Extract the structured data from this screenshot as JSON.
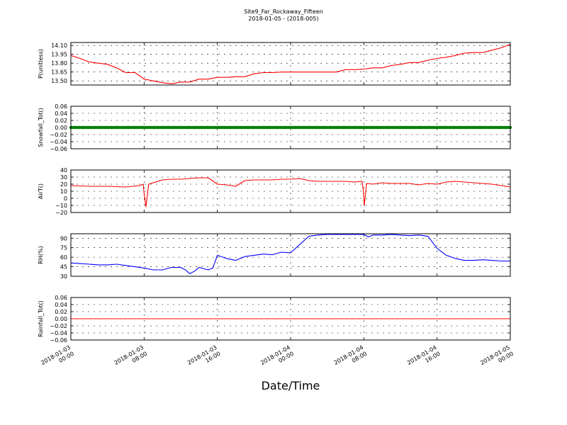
{
  "figure": {
    "title": "Site9_Far_Rockaway_Fifteen",
    "subtitle": "2018-01-05 - (2018-005)",
    "xlabel": "Date/Time",
    "x_ticks": [
      "2018-01-03 00:00",
      "2018-01-03 08:00",
      "2018-01-03 16:00",
      "2018-01-04 00:00",
      "2018-01-04 08:00",
      "2018-01-04 16:00",
      "2018-01-05 00:00"
    ],
    "x_tick_lines": [
      [
        "2018-01-03",
        "00:00"
      ],
      [
        "2018-01-03",
        "08:00"
      ],
      [
        "2018-01-03",
        "16:00"
      ],
      [
        "2018-01-04",
        "00:00"
      ],
      [
        "2018-01-04",
        "08:00"
      ],
      [
        "2018-01-04",
        "16:00"
      ],
      [
        "2018-01-05",
        "00:00"
      ]
    ]
  },
  "chart_data": [
    {
      "type": "line",
      "ylabel": "P(unitless)",
      "color": "#ff0000",
      "ylim": [
        13.43,
        14.15
      ],
      "yticks": [
        13.5,
        13.65,
        13.8,
        13.95,
        14.1
      ],
      "ytick_labels": [
        "13.50",
        "13.65",
        "13.80",
        "13.95",
        "14.10"
      ],
      "grid": true,
      "x_hours": [
        0,
        1,
        2,
        3,
        4,
        5,
        6,
        7,
        8,
        9,
        10,
        11,
        12,
        13,
        14,
        15,
        16,
        17,
        18,
        19,
        20,
        21,
        22,
        23,
        24,
        25,
        26,
        27,
        28,
        29,
        30,
        31,
        32,
        33,
        34,
        35,
        36,
        37,
        38,
        39,
        40,
        41,
        42,
        43,
        44,
        45,
        46,
        47,
        48
      ],
      "values": [
        13.93,
        13.88,
        13.82,
        13.8,
        13.78,
        13.72,
        13.64,
        13.64,
        13.53,
        13.5,
        13.47,
        13.45,
        13.48,
        13.48,
        13.53,
        13.53,
        13.56,
        13.56,
        13.57,
        13.57,
        13.62,
        13.64,
        13.64,
        13.65,
        13.65,
        13.65,
        13.65,
        13.65,
        13.65,
        13.65,
        13.69,
        13.69,
        13.7,
        13.72,
        13.72,
        13.76,
        13.78,
        13.81,
        13.81,
        13.85,
        13.88,
        13.9,
        13.93,
        13.97,
        13.98,
        13.98,
        14.02,
        14.06,
        14.12
      ]
    },
    {
      "type": "scatter",
      "ylabel": "Snowfall_Tot()",
      "color": "#008000",
      "ylim": [
        -0.06,
        0.06
      ],
      "yticks": [
        -0.06,
        -0.04,
        -0.02,
        0.0,
        0.02,
        0.04,
        0.06
      ],
      "ytick_labels": [
        "−0.06",
        "−0.04",
        "−0.02",
        "0.00",
        "0.02",
        "0.04",
        "0.06"
      ],
      "grid": true,
      "x_hours_range": [
        0,
        48
      ],
      "constant_value": 0.0
    },
    {
      "type": "line",
      "ylabel": "AirT()",
      "color": "#ff0000",
      "ylim": [
        -20,
        40
      ],
      "yticks": [
        -20,
        -10,
        0,
        10,
        20,
        30,
        40
      ],
      "ytick_labels": [
        "−20",
        "−10",
        "0",
        "10",
        "20",
        "30",
        "40"
      ],
      "grid": true,
      "x_hours": [
        0,
        2,
        4,
        6,
        7.5,
        7.9,
        8.0,
        8.2,
        8.5,
        9,
        10,
        11,
        12,
        13,
        14,
        15,
        16,
        17,
        18,
        19,
        20,
        21,
        22,
        23,
        24,
        25,
        26,
        27,
        28,
        29,
        30,
        31,
        31.8,
        31.95,
        32.05,
        32.3,
        33,
        34,
        35,
        36,
        37,
        38,
        39,
        40,
        41,
        42,
        43,
        44,
        45,
        46,
        47,
        48
      ],
      "values": [
        18,
        17,
        17,
        16,
        18,
        20,
        7,
        -12,
        20,
        22,
        26,
        27,
        27,
        28,
        29,
        29,
        20,
        19,
        17,
        25,
        26,
        26,
        26,
        27,
        27,
        28,
        25,
        24,
        24,
        24,
        24,
        23,
        24,
        10,
        -10,
        21,
        20,
        22,
        21,
        21,
        21,
        19,
        21,
        20,
        23,
        24,
        23,
        22,
        21,
        20,
        18,
        16
      ]
    },
    {
      "type": "line",
      "ylabel": "RH(%)",
      "color": "#0000ff",
      "ylim": [
        30,
        97
      ],
      "yticks": [
        30,
        45,
        60,
        75,
        90
      ],
      "ytick_labels": [
        "30",
        "45",
        "60",
        "75",
        "90"
      ],
      "grid": true,
      "x_hours": [
        0,
        1,
        2,
        3,
        4,
        5,
        6,
        7,
        8,
        9,
        10,
        11,
        12,
        12.5,
        13,
        13.5,
        14,
        15,
        15.5,
        16,
        17,
        18,
        19,
        20,
        21,
        22,
        23,
        24,
        25,
        26,
        27,
        28,
        29,
        30,
        31,
        32,
        32.5,
        33,
        34,
        35,
        36,
        37,
        38,
        39,
        40,
        41,
        42,
        43,
        44,
        45,
        46,
        47,
        48
      ],
      "values": [
        51,
        50,
        49,
        48,
        48,
        49,
        47,
        45,
        43,
        40,
        40,
        44,
        44,
        40,
        34,
        38,
        44,
        40,
        43,
        63,
        58,
        55,
        61,
        63,
        65,
        64,
        68,
        67,
        80,
        93,
        95,
        96,
        96,
        96,
        96,
        96,
        92,
        95,
        95,
        96,
        95,
        94,
        95,
        93,
        74,
        63,
        58,
        55,
        55,
        56,
        55,
        54,
        54
      ]
    },
    {
      "type": "line",
      "ylabel": "Rainfall_Tot()",
      "color": "#ff0000",
      "ylim": [
        -0.06,
        0.06
      ],
      "yticks": [
        -0.06,
        -0.04,
        -0.02,
        0.0,
        0.02,
        0.04,
        0.06
      ],
      "ytick_labels": [
        "−0.06",
        "−0.04",
        "−0.02",
        "0.00",
        "0.02",
        "0.04",
        "0.06"
      ],
      "grid": true,
      "x_hours": [
        0,
        48
      ],
      "values": [
        0.0,
        0.0
      ]
    }
  ]
}
